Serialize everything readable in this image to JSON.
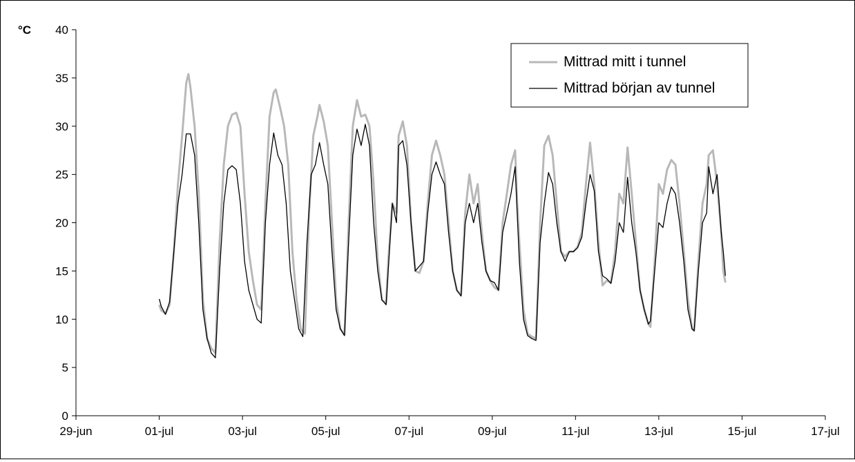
{
  "chart_data": {
    "type": "line",
    "ylabel": "°C",
    "ylim": [
      0,
      40
    ],
    "yticks": [
      0,
      5,
      10,
      15,
      20,
      25,
      30,
      35,
      40
    ],
    "xlim": [
      0,
      18
    ],
    "xticks": [
      {
        "x": 0,
        "label": "29-jun"
      },
      {
        "x": 2,
        "label": "01-jul"
      },
      {
        "x": 4,
        "label": "03-jul"
      },
      {
        "x": 6,
        "label": "05-jul"
      },
      {
        "x": 8,
        "label": "07-jul"
      },
      {
        "x": 10,
        "label": "09-jul"
      },
      {
        "x": 12,
        "label": "11-jul"
      },
      {
        "x": 14,
        "label": "13-jul"
      },
      {
        "x": 16,
        "label": "15-jul"
      },
      {
        "x": 18,
        "label": "17-jul"
      }
    ],
    "grid": false,
    "legend": "top-right",
    "series": [
      {
        "name": "Mittrad mitt i tunnel",
        "color": "#b8b8b8",
        "points": [
          [
            2.0,
            11.5
          ],
          [
            2.05,
            10.9
          ],
          [
            2.15,
            10.6
          ],
          [
            2.25,
            11.5
          ],
          [
            2.35,
            17
          ],
          [
            2.45,
            24
          ],
          [
            2.55,
            29
          ],
          [
            2.65,
            34.5
          ],
          [
            2.7,
            35.4
          ],
          [
            2.75,
            34
          ],
          [
            2.85,
            30
          ],
          [
            2.95,
            23
          ],
          [
            3.05,
            12
          ],
          [
            3.15,
            8
          ],
          [
            3.25,
            7
          ],
          [
            3.35,
            6.5
          ],
          [
            3.45,
            18
          ],
          [
            3.55,
            26
          ],
          [
            3.65,
            30
          ],
          [
            3.75,
            31.2
          ],
          [
            3.85,
            31.4
          ],
          [
            3.95,
            30
          ],
          [
            4.05,
            23
          ],
          [
            4.15,
            17
          ],
          [
            4.25,
            14
          ],
          [
            4.35,
            11.5
          ],
          [
            4.45,
            11
          ],
          [
            4.55,
            22
          ],
          [
            4.65,
            31
          ],
          [
            4.75,
            33.5
          ],
          [
            4.8,
            33.8
          ],
          [
            4.9,
            32
          ],
          [
            5.0,
            30
          ],
          [
            5.1,
            26
          ],
          [
            5.2,
            17
          ],
          [
            5.3,
            12
          ],
          [
            5.4,
            9
          ],
          [
            5.5,
            8.5
          ],
          [
            5.6,
            21
          ],
          [
            5.7,
            29
          ],
          [
            5.8,
            31
          ],
          [
            5.85,
            32.2
          ],
          [
            5.95,
            30.5
          ],
          [
            6.05,
            28
          ],
          [
            6.15,
            20
          ],
          [
            6.25,
            12
          ],
          [
            6.35,
            9
          ],
          [
            6.45,
            8.4
          ],
          [
            6.55,
            20
          ],
          [
            6.65,
            30
          ],
          [
            6.75,
            32.7
          ],
          [
            6.85,
            31
          ],
          [
            6.95,
            31.2
          ],
          [
            7.05,
            30
          ],
          [
            7.15,
            24
          ],
          [
            7.25,
            16
          ],
          [
            7.35,
            12
          ],
          [
            7.45,
            11.7
          ],
          [
            7.5,
            16
          ],
          [
            7.6,
            22
          ],
          [
            7.7,
            21
          ],
          [
            7.75,
            29
          ],
          [
            7.85,
            30.5
          ],
          [
            7.95,
            28
          ],
          [
            8.05,
            20
          ],
          [
            8.15,
            15
          ],
          [
            8.25,
            14.8
          ],
          [
            8.35,
            16
          ],
          [
            8.45,
            22
          ],
          [
            8.55,
            27
          ],
          [
            8.65,
            28.5
          ],
          [
            8.75,
            27
          ],
          [
            8.85,
            25
          ],
          [
            8.95,
            20
          ],
          [
            9.05,
            15
          ],
          [
            9.15,
            13
          ],
          [
            9.25,
            12.5
          ],
          [
            9.35,
            21
          ],
          [
            9.45,
            25
          ],
          [
            9.55,
            22
          ],
          [
            9.65,
            24
          ],
          [
            9.75,
            19
          ],
          [
            9.85,
            15
          ],
          [
            9.95,
            14
          ],
          [
            10.05,
            13.3
          ],
          [
            10.15,
            13
          ],
          [
            10.25,
            20
          ],
          [
            10.35,
            23
          ],
          [
            10.45,
            26
          ],
          [
            10.55,
            27.5
          ],
          [
            10.6,
            22
          ],
          [
            10.65,
            18
          ],
          [
            10.75,
            11
          ],
          [
            10.85,
            8.5
          ],
          [
            10.95,
            8.2
          ],
          [
            11.05,
            8
          ],
          [
            11.15,
            20
          ],
          [
            11.25,
            28
          ],
          [
            11.35,
            29
          ],
          [
            11.45,
            27
          ],
          [
            11.55,
            22
          ],
          [
            11.65,
            17
          ],
          [
            11.75,
            16.5
          ],
          [
            11.85,
            17
          ],
          [
            11.95,
            17
          ],
          [
            12.05,
            17.5
          ],
          [
            12.15,
            19
          ],
          [
            12.25,
            24
          ],
          [
            12.35,
            28.3
          ],
          [
            12.45,
            24
          ],
          [
            12.55,
            18
          ],
          [
            12.65,
            13.5
          ],
          [
            12.75,
            14
          ],
          [
            12.85,
            13.8
          ],
          [
            12.95,
            17
          ],
          [
            13.05,
            23
          ],
          [
            13.15,
            22
          ],
          [
            13.25,
            27.8
          ],
          [
            13.35,
            23
          ],
          [
            13.45,
            18
          ],
          [
            13.55,
            13
          ],
          [
            13.65,
            11
          ],
          [
            13.75,
            9.5
          ],
          [
            13.8,
            9.2
          ],
          [
            13.9,
            16
          ],
          [
            14.0,
            24
          ],
          [
            14.1,
            23
          ],
          [
            14.2,
            25.5
          ],
          [
            14.3,
            26.5
          ],
          [
            14.4,
            26
          ],
          [
            14.5,
            22
          ],
          [
            14.6,
            17
          ],
          [
            14.7,
            12
          ],
          [
            14.8,
            9
          ],
          [
            14.85,
            8.8
          ],
          [
            14.95,
            16
          ],
          [
            15.05,
            22
          ],
          [
            15.15,
            24
          ],
          [
            15.2,
            27
          ],
          [
            15.3,
            27.5
          ],
          [
            15.4,
            24
          ],
          [
            15.5,
            19
          ],
          [
            15.55,
            15
          ],
          [
            15.6,
            13.8
          ]
        ]
      },
      {
        "name": "Mittrad början av tunnel",
        "color": "#000000",
        "points": [
          [
            2.0,
            12.1
          ],
          [
            2.05,
            11.3
          ],
          [
            2.15,
            10.5
          ],
          [
            2.25,
            11.8
          ],
          [
            2.35,
            17
          ],
          [
            2.45,
            22
          ],
          [
            2.55,
            25
          ],
          [
            2.65,
            29.2
          ],
          [
            2.75,
            29.2
          ],
          [
            2.85,
            27
          ],
          [
            2.95,
            20
          ],
          [
            3.05,
            11
          ],
          [
            3.15,
            8
          ],
          [
            3.25,
            6.5
          ],
          [
            3.35,
            6
          ],
          [
            3.45,
            15
          ],
          [
            3.55,
            22
          ],
          [
            3.65,
            25.5
          ],
          [
            3.75,
            25.9
          ],
          [
            3.85,
            25.5
          ],
          [
            3.95,
            22
          ],
          [
            4.05,
            16
          ],
          [
            4.15,
            13
          ],
          [
            4.25,
            11.5
          ],
          [
            4.35,
            10
          ],
          [
            4.45,
            9.6
          ],
          [
            4.55,
            20
          ],
          [
            4.65,
            26
          ],
          [
            4.75,
            29.3
          ],
          [
            4.85,
            27
          ],
          [
            4.95,
            26
          ],
          [
            5.05,
            22
          ],
          [
            5.15,
            15
          ],
          [
            5.25,
            12
          ],
          [
            5.35,
            9
          ],
          [
            5.45,
            8.2
          ],
          [
            5.55,
            18
          ],
          [
            5.65,
            25
          ],
          [
            5.75,
            26
          ],
          [
            5.85,
            28.3
          ],
          [
            5.95,
            26
          ],
          [
            6.05,
            24
          ],
          [
            6.15,
            17
          ],
          [
            6.25,
            11
          ],
          [
            6.35,
            9
          ],
          [
            6.45,
            8.3
          ],
          [
            6.55,
            18
          ],
          [
            6.65,
            27
          ],
          [
            6.75,
            29.7
          ],
          [
            6.85,
            28
          ],
          [
            6.95,
            30.2
          ],
          [
            7.05,
            28
          ],
          [
            7.15,
            20
          ],
          [
            7.25,
            15
          ],
          [
            7.35,
            12
          ],
          [
            7.45,
            11.5
          ],
          [
            7.5,
            15
          ],
          [
            7.6,
            22
          ],
          [
            7.7,
            20
          ],
          [
            7.75,
            28
          ],
          [
            7.85,
            28.5
          ],
          [
            7.95,
            26
          ],
          [
            8.05,
            20
          ],
          [
            8.15,
            15
          ],
          [
            8.25,
            15.5
          ],
          [
            8.35,
            16
          ],
          [
            8.45,
            21
          ],
          [
            8.55,
            25
          ],
          [
            8.65,
            26.3
          ],
          [
            8.75,
            25
          ],
          [
            8.85,
            24
          ],
          [
            8.95,
            19
          ],
          [
            9.05,
            15
          ],
          [
            9.15,
            13
          ],
          [
            9.25,
            12.4
          ],
          [
            9.35,
            20
          ],
          [
            9.45,
            22
          ],
          [
            9.55,
            20
          ],
          [
            9.65,
            22
          ],
          [
            9.75,
            18
          ],
          [
            9.85,
            15
          ],
          [
            9.95,
            14
          ],
          [
            10.05,
            13.8
          ],
          [
            10.15,
            13
          ],
          [
            10.25,
            19
          ],
          [
            10.35,
            21
          ],
          [
            10.45,
            23
          ],
          [
            10.55,
            25.8
          ],
          [
            10.6,
            21
          ],
          [
            10.65,
            16
          ],
          [
            10.75,
            10
          ],
          [
            10.85,
            8.3
          ],
          [
            10.95,
            8
          ],
          [
            11.05,
            7.8
          ],
          [
            11.15,
            18
          ],
          [
            11.25,
            22
          ],
          [
            11.35,
            25.2
          ],
          [
            11.45,
            24
          ],
          [
            11.55,
            20
          ],
          [
            11.65,
            17
          ],
          [
            11.75,
            16
          ],
          [
            11.85,
            17
          ],
          [
            11.95,
            17
          ],
          [
            12.05,
            17.4
          ],
          [
            12.15,
            18.5
          ],
          [
            12.25,
            22
          ],
          [
            12.35,
            25
          ],
          [
            12.45,
            23.3
          ],
          [
            12.55,
            17
          ],
          [
            12.65,
            14.5
          ],
          [
            12.75,
            14.2
          ],
          [
            12.85,
            13.7
          ],
          [
            12.95,
            16
          ],
          [
            13.05,
            20
          ],
          [
            13.15,
            19
          ],
          [
            13.25,
            24.7
          ],
          [
            13.35,
            20
          ],
          [
            13.45,
            17
          ],
          [
            13.55,
            13
          ],
          [
            13.65,
            11
          ],
          [
            13.75,
            9.5
          ],
          [
            13.8,
            9.8
          ],
          [
            13.9,
            15
          ],
          [
            14.0,
            20
          ],
          [
            14.1,
            19.5
          ],
          [
            14.2,
            22
          ],
          [
            14.3,
            23.7
          ],
          [
            14.4,
            23
          ],
          [
            14.5,
            20
          ],
          [
            14.6,
            16
          ],
          [
            14.7,
            11
          ],
          [
            14.8,
            9
          ],
          [
            14.85,
            8.8
          ],
          [
            14.95,
            15
          ],
          [
            15.05,
            20
          ],
          [
            15.15,
            21
          ],
          [
            15.2,
            25.8
          ],
          [
            15.3,
            23
          ],
          [
            15.4,
            25
          ],
          [
            15.5,
            19
          ],
          [
            15.55,
            17
          ],
          [
            15.6,
            14.5
          ]
        ]
      }
    ]
  }
}
